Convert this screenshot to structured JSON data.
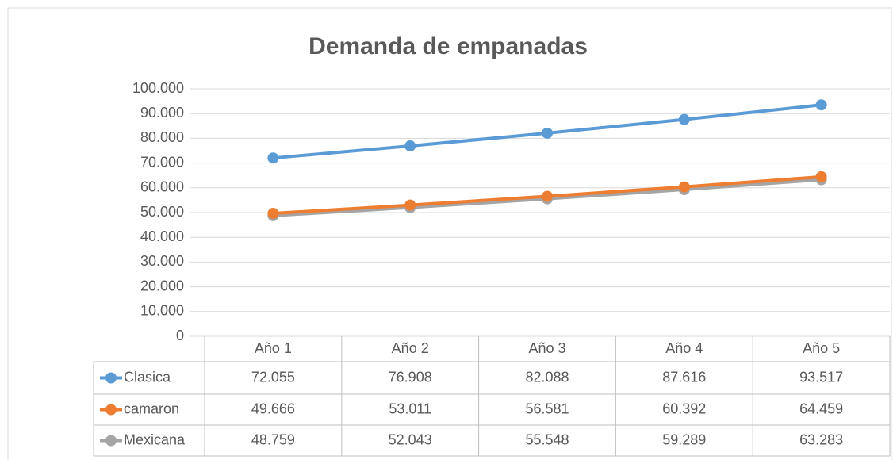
{
  "chart_data": {
    "type": "line",
    "title": "Demanda de empanadas",
    "categories": [
      "Año 1",
      "Año 2",
      "Año 3",
      "Año 4",
      "Año 5"
    ],
    "series": [
      {
        "name": "Clasica",
        "color": "#5b9bd5",
        "values": [
          72055,
          76908,
          82088,
          87616,
          93517
        ],
        "value_labels": [
          "72.055",
          "76.908",
          "82.088",
          "87.616",
          "93.517"
        ]
      },
      {
        "name": "camaron",
        "color": "#ed7d31",
        "values": [
          49666,
          53011,
          56581,
          60392,
          64459
        ],
        "value_labels": [
          "49.666",
          "53.011",
          "56.581",
          "60.392",
          "64.459"
        ]
      },
      {
        "name": "Mexicana",
        "color": "#a5a5a5",
        "values": [
          48759,
          52043,
          55548,
          59289,
          63283
        ],
        "value_labels": [
          "48.759",
          "52.043",
          "55.548",
          "59.289",
          "63.283"
        ]
      }
    ],
    "ylim": [
      0,
      100000
    ],
    "yticks": [
      0,
      {
        "value": 10000,
        "label": "10.000"
      },
      {
        "value": 20000,
        "label": "20.000"
      },
      {
        "value": 30000,
        "label": "30.000"
      },
      {
        "value": 40000,
        "label": "40.000"
      },
      {
        "value": 50000,
        "label": "50.000"
      },
      {
        "value": 60000,
        "label": "60.000"
      },
      {
        "value": 70000,
        "label": "70.000"
      },
      {
        "value": 80000,
        "label": "80.000"
      },
      {
        "value": 90000,
        "label": "90.000"
      },
      {
        "value": 100000,
        "label": "100.000"
      }
    ],
    "grid": true
  }
}
